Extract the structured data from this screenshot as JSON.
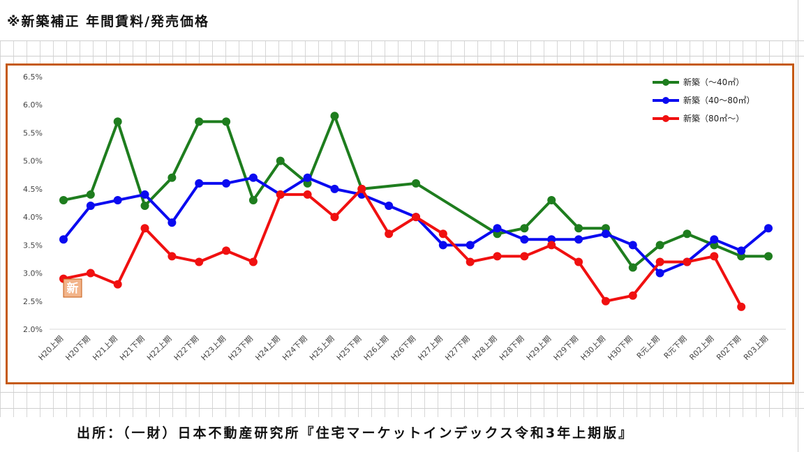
{
  "page": {
    "title": "※新築補正 年間賃料/発売価格",
    "source": "出所：（一財）日本不動産研究所『住宅マーケットインデックス令和3年上期版』",
    "badge": "新"
  },
  "chart_data": {
    "type": "line",
    "title": "",
    "xlabel": "",
    "ylabel": "",
    "ylim": [
      2.0,
      6.5
    ],
    "y_ticks": [
      "2.0%",
      "2.5%",
      "3.0%",
      "3.5%",
      "4.0%",
      "4.5%",
      "5.0%",
      "5.5%",
      "6.0%",
      "6.5%"
    ],
    "y_tick_values": [
      2.0,
      2.5,
      3.0,
      3.5,
      4.0,
      4.5,
      5.0,
      5.5,
      6.0,
      6.5
    ],
    "grid": false,
    "legend_position": "top-right",
    "categories": [
      "H20上期",
      "H20下期",
      "H21上期",
      "H21下期",
      "H22上期",
      "H22下期",
      "H23上期",
      "H23下期",
      "H24上期",
      "H24下期",
      "H25上期",
      "H25下期",
      "H26上期",
      "H26下期",
      "H27上期",
      "H27下期",
      "H28上期",
      "H28下期",
      "H29上期",
      "H29下期",
      "H30上期",
      "H30下期",
      "R元上期",
      "R元下期",
      "R02上期",
      "R02下期",
      "R03上期"
    ],
    "series": [
      {
        "name": "新築（～40㎡）",
        "color": "#1e7d1e",
        "values": [
          4.3,
          4.4,
          5.7,
          4.2,
          4.7,
          5.7,
          5.7,
          4.3,
          5.0,
          4.6,
          5.8,
          4.5,
          null,
          4.6,
          null,
          null,
          3.7,
          3.8,
          4.3,
          3.8,
          3.8,
          3.1,
          3.5,
          3.7,
          3.5,
          3.3,
          3.3
        ]
      },
      {
        "name": "新築（40～80㎡）",
        "color": "#0a0af0",
        "values": [
          3.6,
          4.2,
          4.3,
          4.4,
          3.9,
          4.6,
          4.6,
          4.7,
          4.4,
          4.7,
          4.5,
          4.4,
          4.2,
          4.0,
          3.5,
          3.5,
          3.8,
          3.6,
          3.6,
          3.6,
          3.7,
          3.5,
          3.0,
          3.2,
          3.6,
          3.4,
          3.8
        ]
      },
      {
        "name": "新築（80㎡～）",
        "color": "#f01010",
        "values": [
          2.9,
          3.0,
          2.8,
          3.8,
          3.3,
          3.2,
          3.4,
          3.2,
          4.4,
          4.4,
          4.0,
          4.5,
          3.7,
          4.0,
          3.7,
          3.2,
          3.3,
          3.3,
          3.5,
          3.2,
          2.5,
          2.6,
          3.2,
          3.2,
          3.3,
          2.4,
          null
        ]
      }
    ]
  }
}
